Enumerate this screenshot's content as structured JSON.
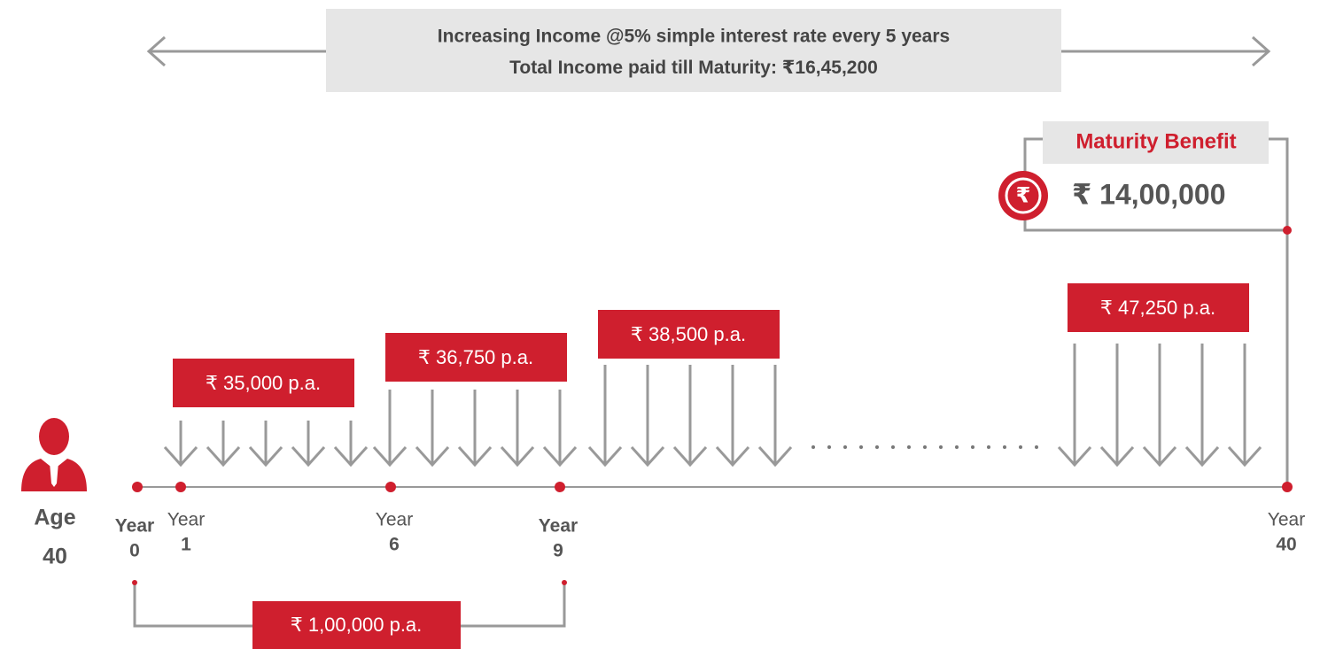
{
  "header": {
    "line1": "Increasing Income @5% simple interest rate every 5 years",
    "line2_label": "Total Income paid till Maturity:",
    "line2_value": "₹16,45,200"
  },
  "maturity": {
    "title": "Maturity Benefit",
    "icon": "₹",
    "amount": "₹ 14,00,000"
  },
  "incomes": [
    "₹ 35,000 p.a.",
    "₹ 36,750 p.a.",
    "₹ 38,500 p.a.",
    "₹ 47,250 p.a."
  ],
  "age": {
    "label": "Age",
    "value": "40"
  },
  "years": [
    {
      "label": "Year",
      "number": "0"
    },
    {
      "label": "Year",
      "number": "1"
    },
    {
      "label": "Year",
      "number": "6"
    },
    {
      "label": "Year",
      "number": "9"
    },
    {
      "label": "Year",
      "number": "40"
    }
  ],
  "premium": "₹ 1,00,000 p.a."
}
